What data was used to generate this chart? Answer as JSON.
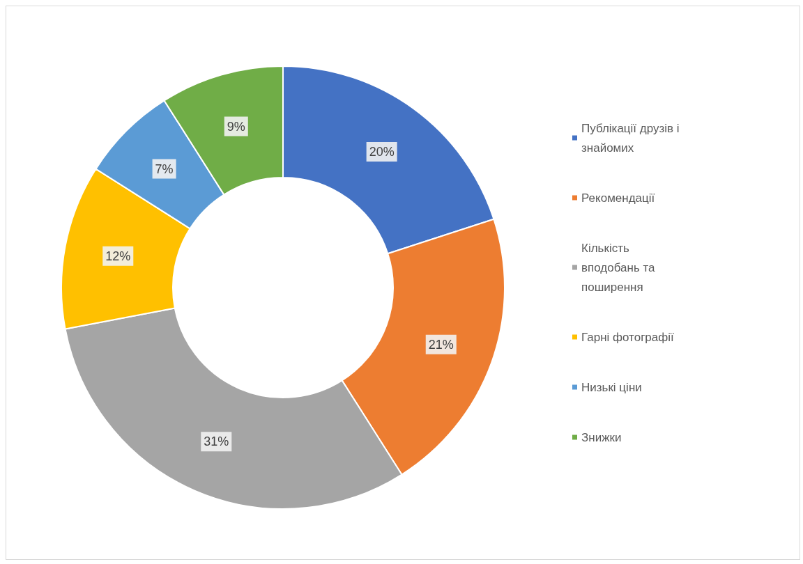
{
  "chart_data": {
    "type": "donut",
    "categories": [
      "Публікації друзів і знайомих",
      "Рекомендації",
      "Кількість вподобань та поширення",
      "Гарні фотографії",
      "Низькі ціни",
      "Знижки"
    ],
    "values": [
      20,
      21,
      31,
      12,
      7,
      9
    ],
    "colors": [
      "#4472c4",
      "#ed7d31",
      "#a5a5a5",
      "#ffc000",
      "#5b9bd5",
      "#70ad47"
    ],
    "value_labels": [
      "20%",
      "21%",
      "31%",
      "12%",
      "7%",
      "9%"
    ],
    "legend": "right"
  }
}
